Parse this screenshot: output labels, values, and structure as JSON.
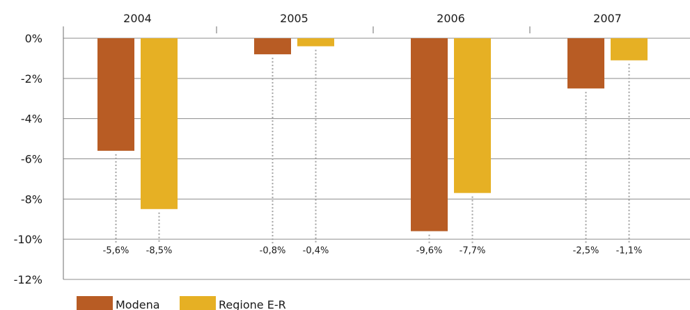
{
  "chart_data": {
    "type": "bar",
    "categories": [
      "2004",
      "2005",
      "2006",
      "2007"
    ],
    "series": [
      {
        "name": "Modena",
        "values": [
          -5.6,
          -0.8,
          -9.6,
          -2.5
        ],
        "labels": [
          "-5,6%",
          "-0,8%",
          "-9,6%",
          "-2,5%"
        ],
        "color": "#b85c24"
      },
      {
        "name": "Regione E-R",
        "values": [
          -8.5,
          -0.4,
          -7.7,
          -1.1
        ],
        "labels": [
          "-8,5%",
          "-0,4%",
          "-7,7%",
          "-1,1%"
        ],
        "color": "#e6b024"
      }
    ],
    "ylim": [
      -12,
      0
    ],
    "yticks": [
      0,
      -2,
      -4,
      -6,
      -8,
      -10,
      -12
    ],
    "ytick_labels": [
      "0%",
      "-2%",
      "-4%",
      "-6%",
      "-8%",
      "-10%",
      "-12%"
    ],
    "category_axis_position": "top",
    "grid": true,
    "legend": "bottom-left"
  }
}
